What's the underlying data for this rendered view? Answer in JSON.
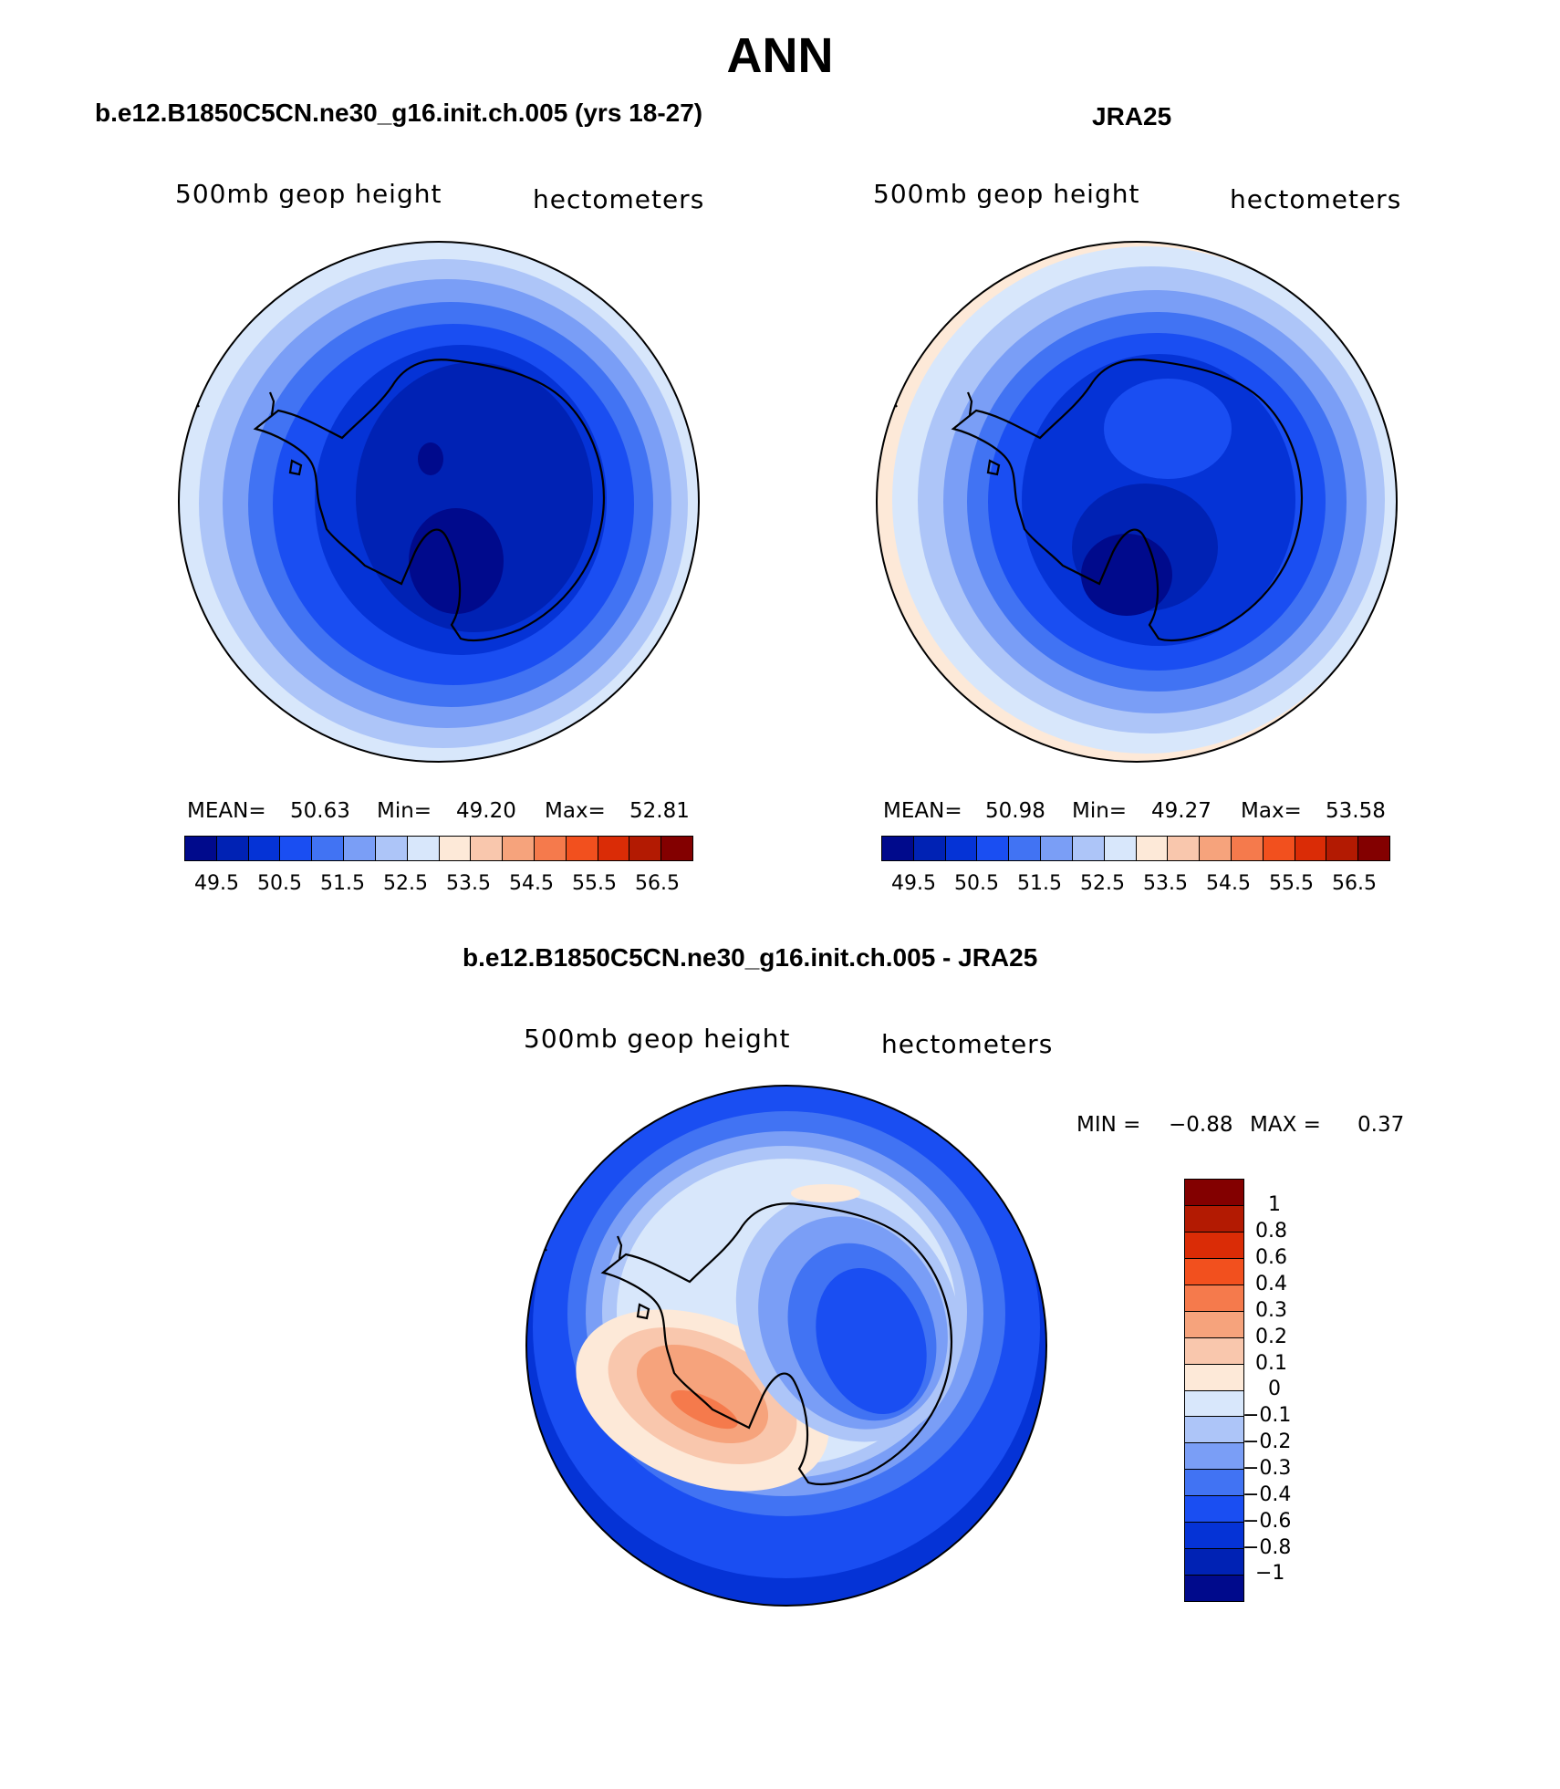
{
  "title": "ANN",
  "panels": {
    "model": {
      "title": "b.e12.B1850C5CN.ne30_g16.init.ch.005 (yrs 18-27)",
      "variable": "500mb geop height",
      "units": "hectometers",
      "mean_label": "MEAN=",
      "mean": "50.63",
      "min_label": "Min=",
      "min": "49.20",
      "max_label": "Max=",
      "max": "52.81"
    },
    "obs": {
      "title": "JRA25",
      "variable": "500mb geop height",
      "units": "hectometers",
      "mean_label": "MEAN=",
      "mean": "50.98",
      "min_label": "Min=",
      "min": "49.27",
      "max_label": "Max=",
      "max": "53.58"
    },
    "diff": {
      "title": "b.e12.B1850C5CN.ne30_g16.init.ch.005 - JRA25",
      "variable": "500mb geop height",
      "units": "hectometers",
      "min_label": "MIN =",
      "min": "−0.88",
      "max_label": "MAX =",
      "max": "0.37"
    }
  },
  "colorbar_abs": {
    "colors": [
      "#000a8c",
      "#0022b4",
      "#0533d6",
      "#1a4ef2",
      "#4173f3",
      "#7a9ef6",
      "#adc5f8",
      "#d8e7fb",
      "#fde9d8",
      "#f9c7ad",
      "#f6a37c",
      "#f57a4c",
      "#f2501e",
      "#da2c06",
      "#b31a02",
      "#830000"
    ],
    "tick_labels": [
      "49.5",
      "50.5",
      "51.5",
      "52.5",
      "53.5",
      "54.5",
      "55.5",
      "56.5"
    ]
  },
  "colorbar_diff": {
    "colors": [
      "#830000",
      "#b31a02",
      "#da2c06",
      "#f2501e",
      "#f57a4c",
      "#f6a37c",
      "#f9c7ad",
      "#fde9d8",
      "#d8e7fb",
      "#adc5f8",
      "#7a9ef6",
      "#4173f3",
      "#1a4ef2",
      "#0533d6",
      "#0022b4",
      "#000a8c"
    ],
    "tick_labels": [
      "1",
      "0.8",
      "0.6",
      "0.4",
      "0.3",
      "0.2",
      "0.1",
      "0",
      "−0.1",
      "−0.2",
      "−0.3",
      "−0.4",
      "−0.6",
      "−0.8",
      "−1"
    ]
  }
}
